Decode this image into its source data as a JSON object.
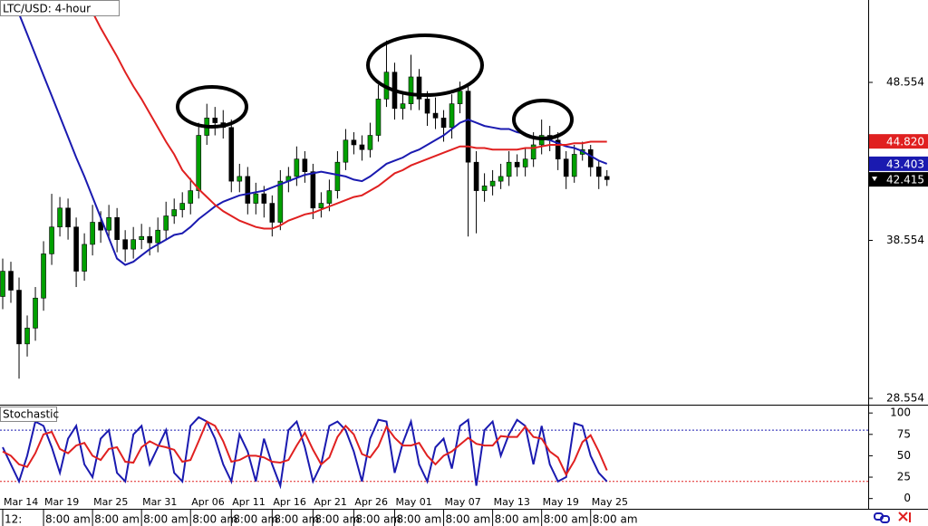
{
  "chart_data": {
    "type": "candlestick",
    "title": "LTC/USD: 4-hour",
    "indicator_title": "Stochastic",
    "ylim": [
      28.152,
      53.769
    ],
    "yticks": [
      28.554,
      38.554,
      48.554
    ],
    "grid": false,
    "bull_color": "#00a000",
    "bear_color": "#000000",
    "categories": [
      "Mar 14",
      null,
      null,
      null,
      null,
      "Mar 19",
      null,
      null,
      null,
      null,
      null,
      "Mar 25",
      null,
      null,
      null,
      null,
      null,
      "Mar 31",
      null,
      null,
      null,
      null,
      null,
      "Apr 06",
      null,
      null,
      null,
      null,
      "Apr 11",
      null,
      null,
      null,
      null,
      "Apr 16",
      null,
      null,
      null,
      null,
      "Apr 21",
      null,
      null,
      null,
      null,
      "Apr 26",
      null,
      null,
      null,
      null,
      "May 01",
      null,
      null,
      null,
      null,
      null,
      "May 07",
      null,
      null,
      null,
      null,
      null,
      "May 13",
      null,
      null,
      null,
      null,
      null,
      "May 19",
      null,
      null,
      null,
      null,
      null,
      "May 25",
      null,
      null
    ],
    "time_labels": [
      "12:",
      null,
      null,
      null,
      null,
      "8:00 am",
      null,
      null,
      null,
      null,
      null,
      "8:00 am",
      null,
      null,
      null,
      null,
      null,
      "8:00 am",
      null,
      null,
      null,
      null,
      null,
      "8:00 am",
      null,
      null,
      null,
      null,
      "8:00 am",
      null,
      null,
      null,
      null,
      "8:00 am",
      null,
      null,
      null,
      null,
      "8:00 am",
      null,
      null,
      null,
      null,
      "8:00 am",
      null,
      null,
      null,
      null,
      "8:00 am",
      null,
      null,
      null,
      null,
      null,
      "8:00 am",
      null,
      null,
      null,
      null,
      null,
      "8:00 am",
      null,
      null,
      null,
      null,
      null,
      "8:00 am",
      null,
      null,
      null,
      null,
      null,
      "8:00 am",
      null,
      null
    ],
    "candles": [
      [
        35,
        37.4,
        34.2,
        36.6
      ],
      [
        36.6,
        37.2,
        34.6,
        35.4
      ],
      [
        35.4,
        36.2,
        29.8,
        32
      ],
      [
        32,
        33.8,
        31.2,
        33
      ],
      [
        33,
        35.6,
        32.2,
        34.9
      ],
      [
        34.9,
        38.5,
        34.1,
        37.7
      ],
      [
        37.7,
        41.5,
        37,
        39.4
      ],
      [
        39.4,
        41.3,
        38.8,
        40.6
      ],
      [
        40.6,
        41.2,
        38.6,
        39.4
      ],
      [
        39.4,
        40,
        35.6,
        36.6
      ],
      [
        36.6,
        39,
        36,
        38.3
      ],
      [
        38.3,
        40.8,
        37.6,
        39.7
      ],
      [
        39.7,
        40.4,
        38.4,
        39.2
      ],
      [
        39.2,
        40.8,
        38.6,
        40
      ],
      [
        40,
        40.6,
        37.8,
        38.6
      ],
      [
        38.6,
        39.2,
        37.2,
        38
      ],
      [
        38,
        39.4,
        37.4,
        38.6
      ],
      [
        38.6,
        39.6,
        38,
        38.8
      ],
      [
        38.8,
        39.4,
        37.6,
        38.4
      ],
      [
        38.4,
        40,
        37.8,
        39.2
      ],
      [
        39.2,
        41,
        38.6,
        40.1
      ],
      [
        40.1,
        41.2,
        39.6,
        40.5
      ],
      [
        40.5,
        41.6,
        40,
        40.9
      ],
      [
        40.9,
        42.5,
        40.2,
        41.7
      ],
      [
        41.7,
        46,
        41.2,
        45.2
      ],
      [
        45.2,
        47.2,
        44.6,
        46.3
      ],
      [
        46.3,
        47,
        45.2,
        46
      ],
      [
        46,
        46.8,
        45,
        45.7
      ],
      [
        45.7,
        46.2,
        41.6,
        42.3
      ],
      [
        42.3,
        43.4,
        41.6,
        42.6
      ],
      [
        42.6,
        43.2,
        40.2,
        40.9
      ],
      [
        40.9,
        42.2,
        40.2,
        41.5
      ],
      [
        41.5,
        42,
        40,
        40.9
      ],
      [
        40.9,
        41.4,
        38.8,
        39.7
      ],
      [
        39.7,
        43,
        39.2,
        42.3
      ],
      [
        42.3,
        43.2,
        41.6,
        42.6
      ],
      [
        42.6,
        44.5,
        42,
        43.7
      ],
      [
        43.7,
        44.2,
        42.2,
        42.9
      ],
      [
        42.9,
        43.4,
        39.9,
        40.6
      ],
      [
        40.6,
        41.6,
        40,
        40.9
      ],
      [
        40.9,
        42.4,
        40.4,
        41.7
      ],
      [
        41.7,
        44.2,
        41.2,
        43.5
      ],
      [
        43.5,
        45.6,
        43,
        44.9
      ],
      [
        44.9,
        45.4,
        44,
        44.6
      ],
      [
        44.6,
        45.2,
        43.6,
        44.3
      ],
      [
        44.3,
        46,
        43.8,
        45.2
      ],
      [
        45.2,
        48.4,
        44.8,
        47.5
      ],
      [
        47.5,
        51.2,
        47,
        49.2
      ],
      [
        49.2,
        49.8,
        46.2,
        46.9
      ],
      [
        46.9,
        48,
        46.2,
        47.2
      ],
      [
        47.2,
        50.3,
        46.8,
        48.9
      ],
      [
        48.9,
        49.4,
        46.8,
        47.5
      ],
      [
        47.5,
        48,
        45.8,
        46.6
      ],
      [
        46.6,
        47.6,
        45.6,
        46.3
      ],
      [
        46.3,
        46.8,
        44.8,
        45.7
      ],
      [
        45.7,
        47.8,
        45,
        47.2
      ],
      [
        47.2,
        48.6,
        46.6,
        48
      ],
      [
        48,
        48.4,
        38.8,
        43.5
      ],
      [
        43.5,
        44.2,
        39,
        41.7
      ],
      [
        41.7,
        42.8,
        41,
        42
      ],
      [
        42,
        43,
        41.4,
        42.3
      ],
      [
        42.3,
        43.4,
        41.8,
        42.6
      ],
      [
        42.6,
        44.2,
        42,
        43.5
      ],
      [
        43.5,
        44,
        42.6,
        43.2
      ],
      [
        43.2,
        44.4,
        42.6,
        43.7
      ],
      [
        43.7,
        45.4,
        43.2,
        44.6
      ],
      [
        44.6,
        46.2,
        44,
        45.2
      ],
      [
        45.2,
        45.8,
        44.2,
        44.9
      ],
      [
        44.9,
        45.4,
        43,
        43.7
      ],
      [
        43.7,
        44.2,
        41.8,
        42.6
      ],
      [
        42.6,
        44.6,
        42.2,
        44
      ],
      [
        44,
        44.8,
        43.6,
        44.3
      ],
      [
        44.3,
        44.6,
        42.6,
        43.2
      ],
      [
        43.2,
        43.6,
        41.8,
        42.6
      ],
      [
        42.6,
        43,
        42,
        42.4
      ]
    ],
    "series": [
      {
        "color": "#1a1ab0",
        "values": [
          55.5,
          54.2,
          52.9,
          51.6,
          50.3,
          49.0,
          47.7,
          46.4,
          45.1,
          43.8,
          42.6,
          41.3,
          40.0,
          38.7,
          37.4,
          37.0,
          37.2,
          37.6,
          38.0,
          38.3,
          38.6,
          38.9,
          39.0,
          39.4,
          39.9,
          40.3,
          40.7,
          41.0,
          41.2,
          41.4,
          41.5,
          41.6,
          41.7,
          41.9,
          42.1,
          42.3,
          42.5,
          42.7,
          42.8,
          42.9,
          42.8,
          42.7,
          42.6,
          42.4,
          42.3,
          42.6,
          43.0,
          43.4,
          43.6,
          43.8,
          44.1,
          44.3,
          44.6,
          44.9,
          45.2,
          45.6,
          46.0,
          46.2,
          46.0,
          45.8,
          45.7,
          45.6,
          45.6,
          45.4,
          45.3,
          45.1,
          45.0,
          44.9,
          44.7,
          44.5,
          44.4,
          44.2,
          43.9,
          43.6,
          43.4
        ]
      },
      {
        "color": "#e02020",
        "values": [
          null,
          null,
          null,
          null,
          null,
          null,
          null,
          null,
          null,
          54.8,
          53.9,
          53.0,
          52.0,
          51.1,
          50.2,
          49.2,
          48.3,
          47.5,
          46.6,
          45.7,
          44.8,
          44.0,
          43.0,
          42.4,
          41.8,
          41.3,
          40.8,
          40.4,
          40.1,
          39.8,
          39.6,
          39.4,
          39.3,
          39.3,
          39.5,
          39.8,
          40.0,
          40.2,
          40.3,
          40.5,
          40.7,
          40.9,
          41.1,
          41.3,
          41.4,
          41.7,
          42.0,
          42.4,
          42.8,
          43.0,
          43.3,
          43.5,
          43.7,
          43.9,
          44.1,
          44.3,
          44.5,
          44.5,
          44.4,
          44.4,
          44.3,
          44.3,
          44.3,
          44.3,
          44.4,
          44.4,
          44.5,
          44.6,
          44.6,
          44.6,
          44.7,
          44.7,
          44.8,
          44.8,
          44.8
        ]
      }
    ],
    "price_tags": [
      {
        "value": 44.82,
        "label": "44.820",
        "color": "#e02020"
      },
      {
        "value": 43.403,
        "label": "43.403",
        "color": "#1a1ab0"
      },
      {
        "value": 42.415,
        "label": "42.415",
        "color": "#000000"
      }
    ],
    "stochastic": {
      "ylim": [
        -12,
        107.6
      ],
      "yticks": [
        0,
        25,
        50,
        75,
        100
      ],
      "levels": [
        {
          "value": 80,
          "color": "#1a1ab0"
        },
        {
          "value": 20,
          "color": "#e02020"
        }
      ],
      "series": [
        {
          "color": "#1a1ab0",
          "values": [
            60,
            40,
            20,
            50,
            90,
            85,
            60,
            30,
            70,
            85,
            40,
            25,
            70,
            80,
            30,
            20,
            75,
            85,
            40,
            60,
            80,
            30,
            20,
            85,
            95,
            90,
            70,
            40,
            20,
            75,
            55,
            20,
            70,
            40,
            15,
            80,
            90,
            60,
            20,
            40,
            85,
            90,
            80,
            55,
            20,
            70,
            92,
            90,
            30,
            65,
            90,
            40,
            20,
            60,
            70,
            35,
            85,
            92,
            15,
            80,
            90,
            50,
            75,
            92,
            85,
            40,
            85,
            40,
            20,
            25,
            88,
            85,
            50,
            30,
            20
          ]
        },
        {
          "color": "#e02020",
          "values": [
            55,
            50,
            40,
            37,
            53,
            75,
            78,
            58,
            53,
            62,
            65,
            50,
            45,
            58,
            60,
            43,
            42,
            60,
            67,
            62,
            60,
            57,
            43,
            45,
            67,
            90,
            85,
            67,
            43,
            45,
            50,
            50,
            48,
            43,
            42,
            45,
            62,
            77,
            57,
            40,
            48,
            72,
            85,
            75,
            52,
            48,
            61,
            84,
            71,
            62,
            62,
            65,
            50,
            40,
            50,
            55,
            63,
            71,
            64,
            62,
            62,
            73,
            72,
            72,
            84,
            72,
            70,
            55,
            48,
            28,
            44,
            66,
            74,
            55,
            33
          ]
        }
      ]
    }
  }
}
